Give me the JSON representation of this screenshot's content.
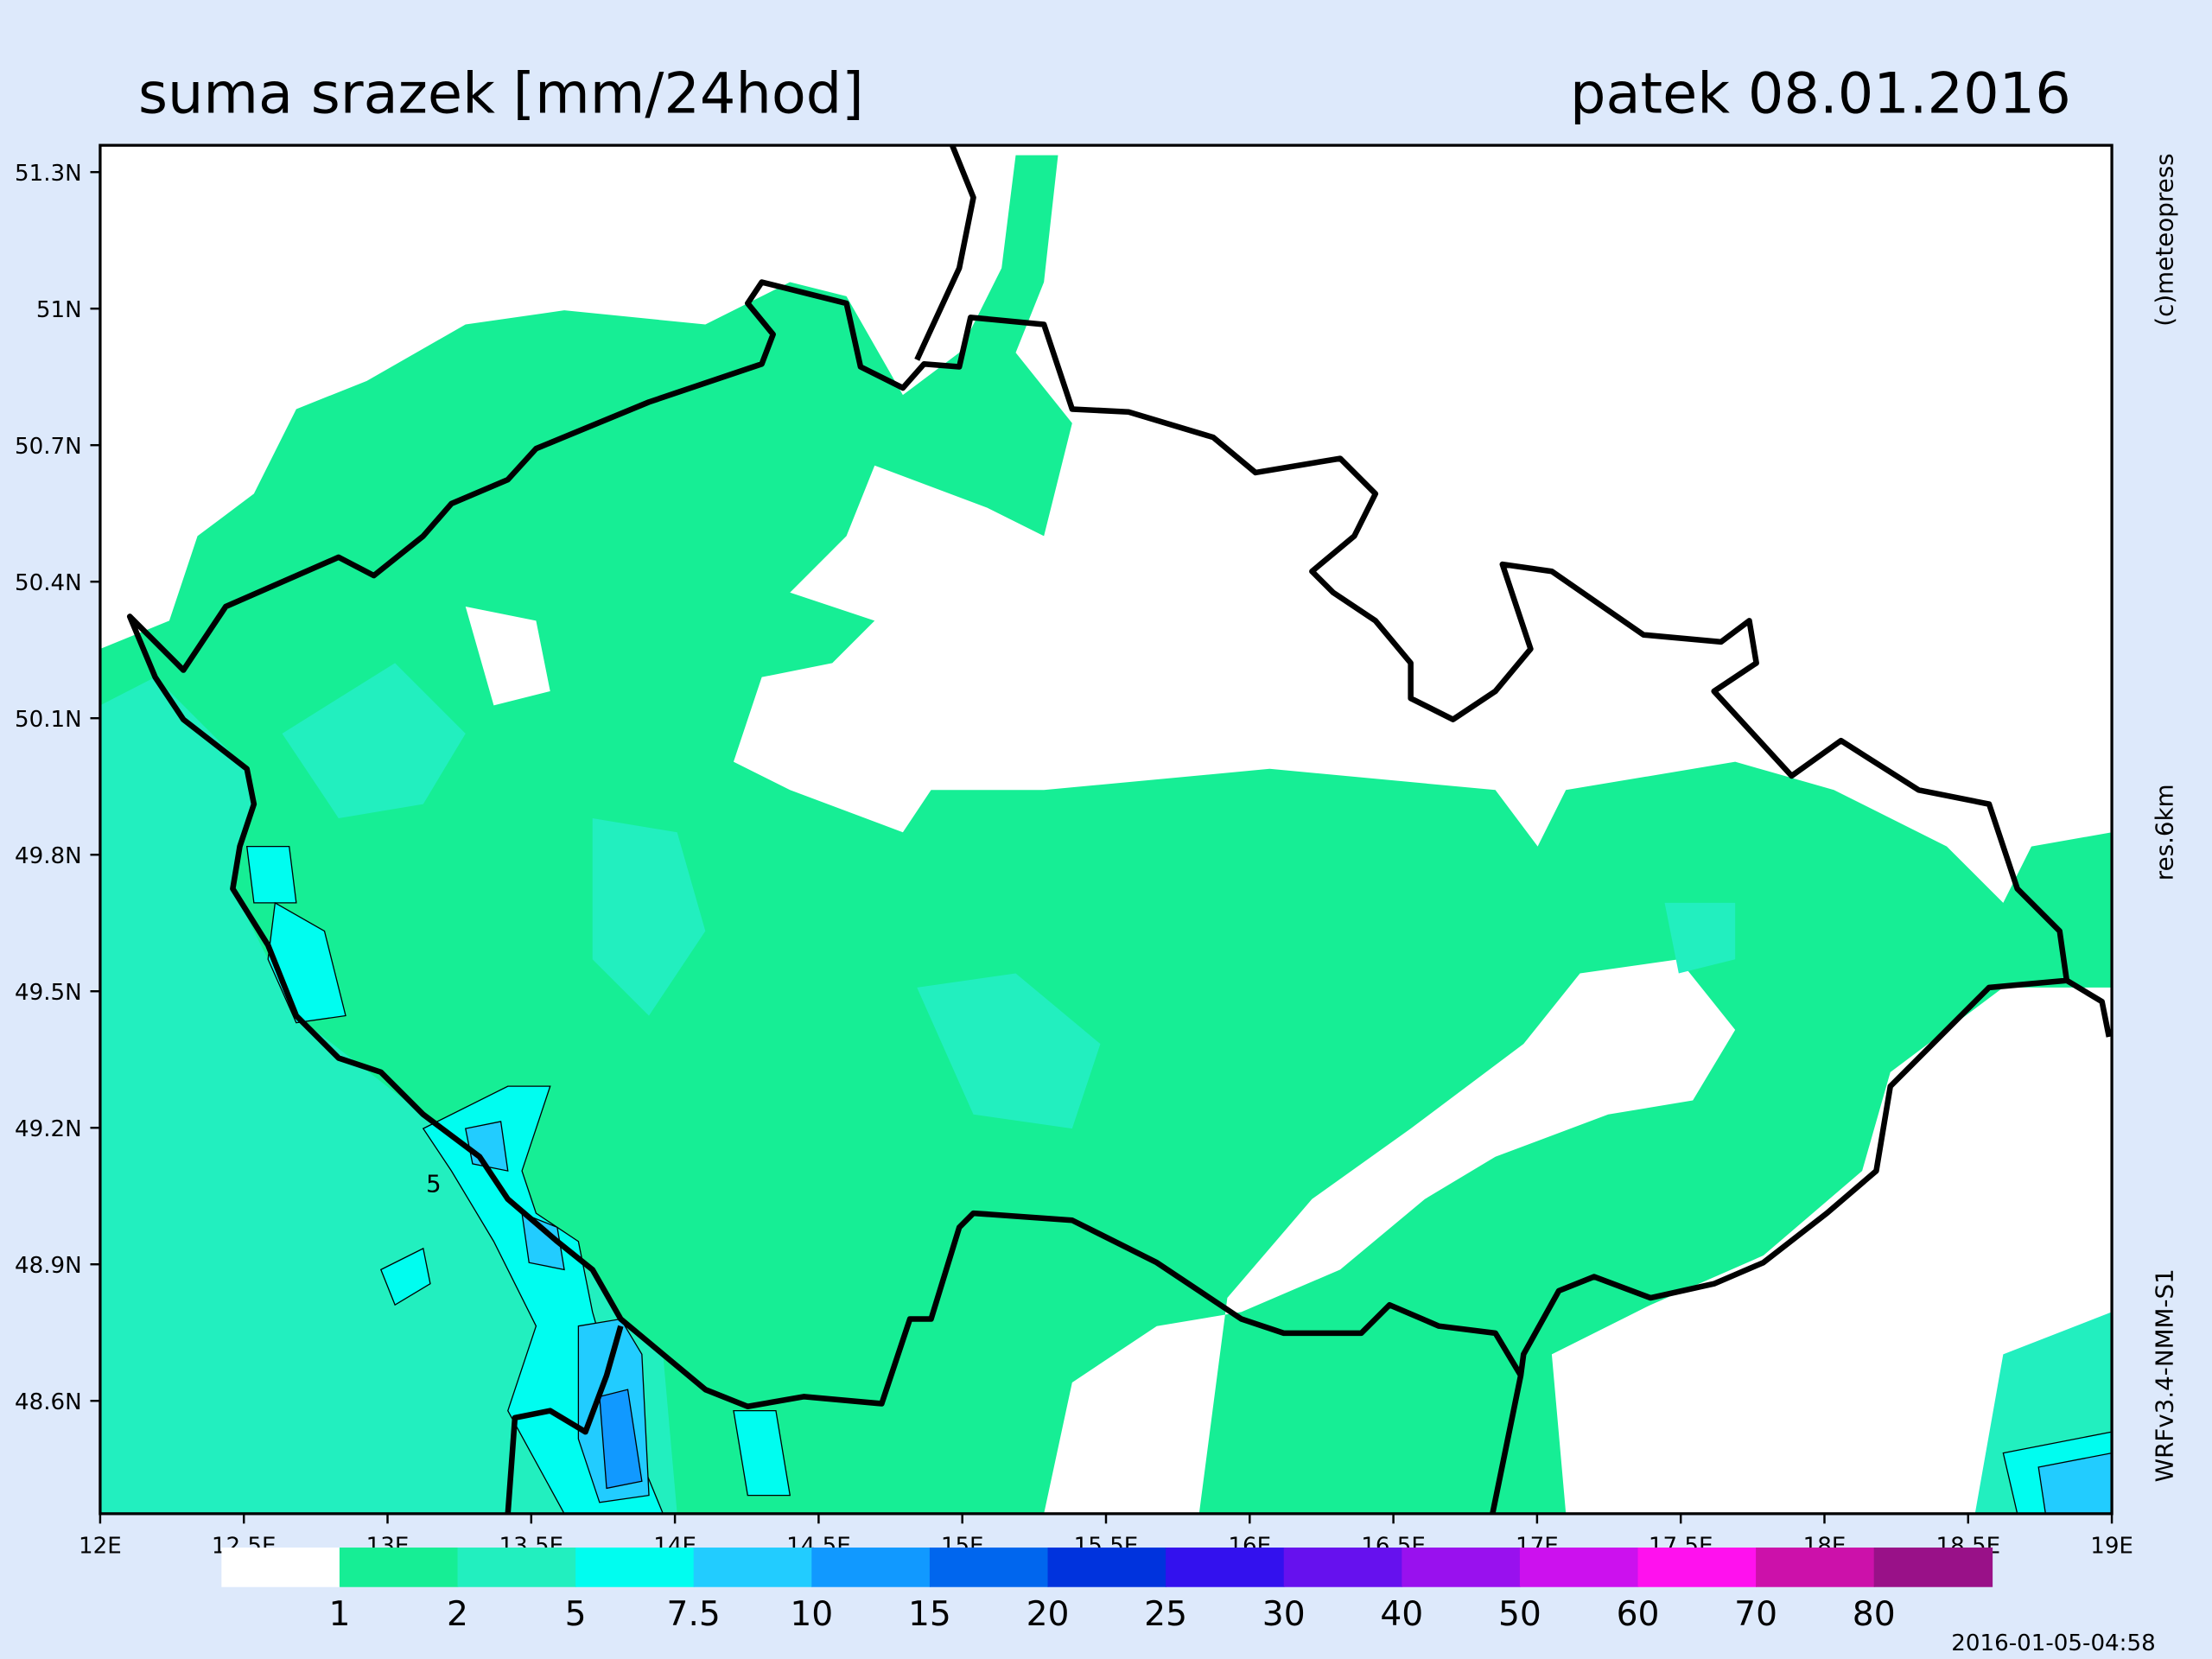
{
  "header": {
    "title": "suma srazek [mm/24hod]",
    "date": "patek 08.01.2016"
  },
  "map": {
    "lon_ticks": [
      {
        "value": 12,
        "label": "12E"
      },
      {
        "value": 12.5,
        "label": "12.5E"
      },
      {
        "value": 13,
        "label": "13E"
      },
      {
        "value": 13.5,
        "label": "13.5E"
      },
      {
        "value": 14,
        "label": "14E"
      },
      {
        "value": 14.5,
        "label": "14.5E"
      },
      {
        "value": 15,
        "label": "15E"
      },
      {
        "value": 15.5,
        "label": "15.5E"
      },
      {
        "value": 16,
        "label": "16E"
      },
      {
        "value": 16.5,
        "label": "16.5E"
      },
      {
        "value": 17,
        "label": "17E"
      },
      {
        "value": 17.5,
        "label": "17.5E"
      },
      {
        "value": 18,
        "label": "18E"
      },
      {
        "value": 18.5,
        "label": "18.5E"
      },
      {
        "value": 19,
        "label": "19E"
      }
    ],
    "lat_ticks": [
      {
        "value": 51.3,
        "label": "51.3N"
      },
      {
        "value": 51,
        "label": "51N"
      },
      {
        "value": 50.7,
        "label": "50.7N"
      },
      {
        "value": 50.4,
        "label": "50.4N"
      },
      {
        "value": 50.1,
        "label": "50.1N"
      },
      {
        "value": 49.8,
        "label": "49.8N"
      },
      {
        "value": 49.5,
        "label": "49.5N"
      },
      {
        "value": 49.2,
        "label": "49.2N"
      },
      {
        "value": 48.9,
        "label": "48.9N"
      },
      {
        "value": 48.6,
        "label": "48.6N"
      }
    ],
    "contour_label": "5"
  },
  "legend": {
    "colors": [
      "#ffffff",
      "#16ee95",
      "#22efbf",
      "#00fdf0",
      "#22ccff",
      "#1199ff",
      "#0066ee",
      "#0033dd",
      "#3311ee",
      "#6611ee",
      "#9911ee",
      "#cc11ee",
      "#ff11ee",
      "#cc11aa",
      "#991188"
    ],
    "levels": [
      1,
      2,
      5,
      7.5,
      10,
      15,
      20,
      25,
      30,
      40,
      50,
      60,
      70,
      80
    ]
  },
  "side_notes": [
    "(c)meteopress",
    "res.6km",
    "WRFv3.4-NMM-S1"
  ],
  "timestamp": "2016-01-05-04:58"
}
